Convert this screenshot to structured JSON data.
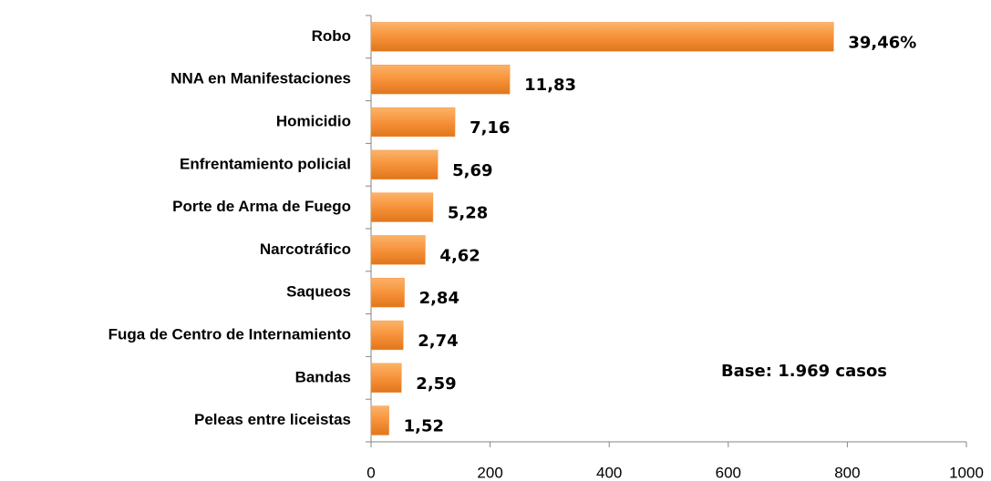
{
  "chart_data": {
    "type": "bar",
    "orientation": "horizontal",
    "categories": [
      "Robo",
      "NNA en Manifestaciones",
      "Homicidio",
      "Enfrentamiento policial",
      "Porte de Arma de Fuego",
      "Narcotráfico",
      "Saqueos",
      "Fuga de Centro de Internamiento",
      "Bandas",
      "Peleas entre liceistas"
    ],
    "values": [
      777,
      233,
      141,
      112,
      104,
      91,
      56,
      54,
      51,
      30
    ],
    "value_labels": [
      "39,46%",
      "11,83",
      "7,16",
      "5,69",
      "5,28",
      "4,62",
      "2,84",
      "2,74",
      "2,59",
      "1,52"
    ],
    "color": "#f79646",
    "xlim": [
      0,
      1000
    ],
    "xticks": [
      0,
      200,
      400,
      600,
      800,
      1000
    ],
    "annotation": "Base: 1.969 casos"
  }
}
